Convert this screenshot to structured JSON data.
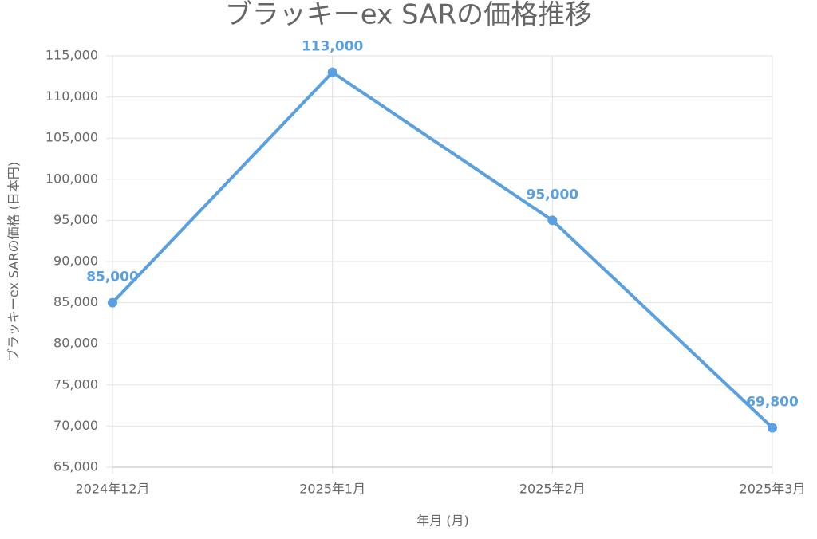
{
  "chart_data": {
    "type": "line",
    "title": "ブラッキーex SARの価格推移",
    "x_label": "年月 (月)",
    "y_label": "ブラッキーex SARの価格 (日本円)",
    "categories": [
      "2024年12月",
      "2025年1月",
      "2025年2月",
      "2025年3月"
    ],
    "values": [
      85000,
      113000,
      95000,
      69800
    ],
    "value_labels": [
      "85,000",
      "113,000",
      "95,000",
      "69,800"
    ],
    "color": "#5aa0e0",
    "ylim": [
      65000,
      115000
    ],
    "yticks": [
      {
        "value": 65000,
        "label": "65,000"
      },
      {
        "value": 70000,
        "label": "70,000"
      },
      {
        "value": 75000,
        "label": "75,000"
      },
      {
        "value": 80000,
        "label": "80,000"
      },
      {
        "value": 85000,
        "label": "85,000"
      },
      {
        "value": 90000,
        "label": "90,000"
      },
      {
        "value": 95000,
        "label": "95,000"
      },
      {
        "value": 100000,
        "label": "100,000"
      },
      {
        "value": 105000,
        "label": "105,000"
      },
      {
        "value": 110000,
        "label": "110,000"
      },
      {
        "value": 115000,
        "label": "115,000"
      }
    ],
    "grid": true
  }
}
